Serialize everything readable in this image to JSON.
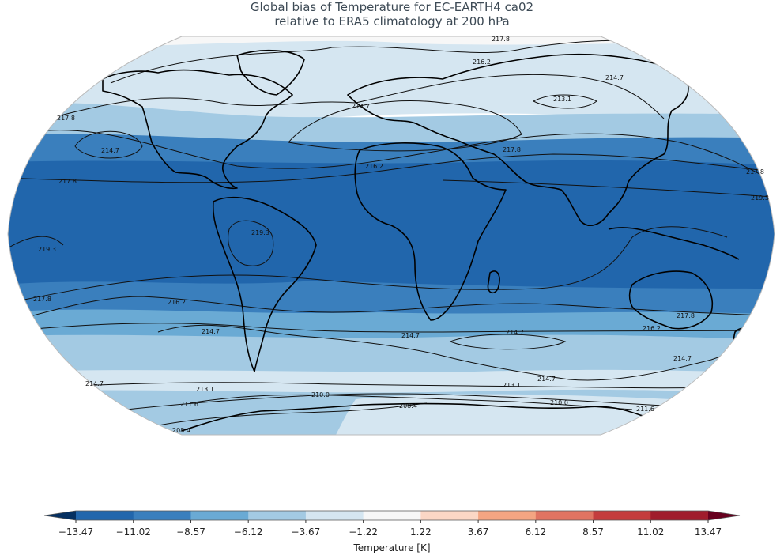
{
  "title_line1": "Global bias of Temperature for EC-EARTH4 ca02",
  "title_line2": "relative to ERA5 climatology at 200 hPa",
  "colorbar": {
    "label": "Temperature [K]",
    "ticks": [
      "−13.47",
      "−11.02",
      "−8.57",
      "−6.12",
      "−3.67",
      "−1.22",
      "1.22",
      "3.67",
      "6.12",
      "8.57",
      "11.02",
      "13.47"
    ],
    "bin_colors": [
      "#2166ac",
      "#3a7fbd",
      "#6aaad4",
      "#a3cae3",
      "#d5e6f1",
      "#f7f7f7",
      "#fbd7c5",
      "#f4a582",
      "#e07462",
      "#c43c3d",
      "#a01c2c"
    ],
    "under_color": "#053061",
    "over_color": "#67001f"
  },
  "map": {
    "projection": "robinson",
    "bias_band_colors": {
      "deep": "#2166ac",
      "strong": "#3a7fbd",
      "moderate": "#6aaad4",
      "weak": "#a3cae3",
      "slight": "#d5e6f1",
      "neutral": "#f7f7f7"
    },
    "contour_labels": [
      "217.8",
      "216.2",
      "214.7",
      "213.1",
      "214.7",
      "217.8",
      "214.7",
      "216.2",
      "217.8",
      "217.8",
      "217.8",
      "219.3",
      "219.3",
      "219.3",
      "217.8",
      "216.2",
      "214.7",
      "214.7",
      "214.7",
      "216.2",
      "217.8",
      "214.7",
      "214.7",
      "213.1",
      "213.1",
      "211.6",
      "210.0",
      "208.4",
      "208.4",
      "210.0",
      "211.6",
      "214.7"
    ]
  }
}
